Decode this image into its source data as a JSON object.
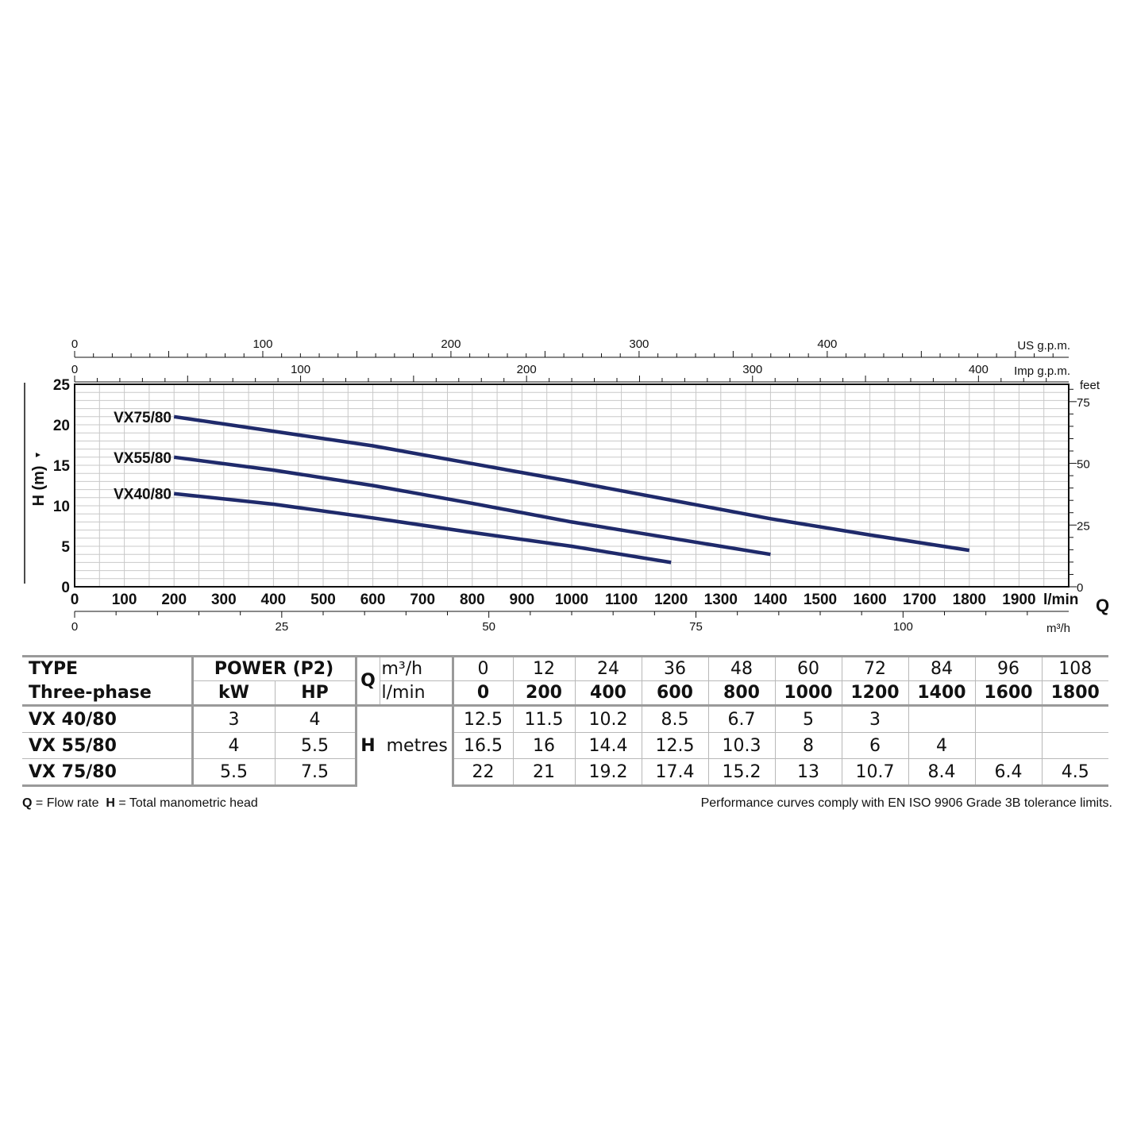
{
  "chart_data": {
    "type": "line",
    "x_unit_label": "l/min",
    "q_label": "Q",
    "y_label": "H (m)",
    "feet_label": "feet",
    "xlim": [
      0,
      2000
    ],
    "ylim": [
      0,
      25
    ],
    "x_ticks": [
      "0",
      "100",
      "200",
      "300",
      "400",
      "500",
      "600",
      "700",
      "800",
      "900",
      "1000",
      "1100",
      "1200",
      "1300",
      "1400",
      "1500",
      "1600",
      "1700",
      "1800",
      "1900"
    ],
    "y_ticks": [
      "0",
      "5",
      "10",
      "15",
      "20",
      "25"
    ],
    "feet_ticks": [
      "0",
      "25",
      "50",
      "75"
    ],
    "us_gpm": {
      "label": "US g.p.m.",
      "ticks": [
        "0",
        "100",
        "200",
        "300",
        "400"
      ]
    },
    "imp_gpm": {
      "label": "Imp g.p.m.",
      "ticks": [
        "0",
        "100",
        "200",
        "300",
        "400"
      ]
    },
    "m3h": {
      "label": "m³/h",
      "ticks": [
        "0",
        "25",
        "50",
        "75",
        "100"
      ]
    },
    "grid": true,
    "line_color": "#1f2a6b",
    "series": [
      {
        "name": "VX75/80",
        "x": [
          200,
          400,
          600,
          800,
          1000,
          1200,
          1400,
          1600,
          1800
        ],
        "y": [
          21,
          19.2,
          17.4,
          15.2,
          13,
          10.7,
          8.4,
          6.4,
          4.5
        ]
      },
      {
        "name": "VX55/80",
        "x": [
          200,
          400,
          600,
          800,
          1000,
          1200,
          1400
        ],
        "y": [
          16,
          14.4,
          12.5,
          10.3,
          8,
          6,
          4
        ]
      },
      {
        "name": "VX40/80",
        "x": [
          200,
          400,
          600,
          800,
          1000,
          1200
        ],
        "y": [
          11.5,
          10.2,
          8.5,
          6.7,
          5,
          3
        ]
      }
    ]
  },
  "table": {
    "type_header": "TYPE",
    "phase_header": "Three-phase",
    "power_header": "POWER (P2)",
    "kw_header": "kW",
    "hp_header": "HP",
    "q_symbol": "Q",
    "q_unit_m3h": "m³/h",
    "q_unit_lmin": "l/min",
    "q_m3h": [
      "0",
      "12",
      "24",
      "36",
      "48",
      "60",
      "72",
      "84",
      "96",
      "108"
    ],
    "q_lmin": [
      "0",
      "200",
      "400",
      "600",
      "800",
      "1000",
      "1200",
      "1400",
      "1600",
      "1800"
    ],
    "h_symbol": "H",
    "h_unit": "metres",
    "rows": [
      {
        "type": "VX 40/80",
        "kw": "3",
        "hp": "4",
        "h": [
          "12.5",
          "11.5",
          "10.2",
          "8.5",
          "6.7",
          "5",
          "3",
          "",
          "",
          ""
        ]
      },
      {
        "type": "VX 55/80",
        "kw": "4",
        "hp": "5.5",
        "h": [
          "16.5",
          "16",
          "14.4",
          "12.5",
          "10.3",
          "8",
          "6",
          "4",
          "",
          ""
        ]
      },
      {
        "type": "VX 75/80",
        "kw": "5.5",
        "hp": "7.5",
        "h": [
          "22",
          "21",
          "19.2",
          "17.4",
          "15.2",
          "13",
          "10.7",
          "8.4",
          "6.4",
          "4.5"
        ]
      }
    ]
  },
  "footer": {
    "q_symbol": "Q",
    "q_text": "= Flow rate",
    "h_symbol": "H",
    "h_text": "= Total manometric head",
    "right": "Performance curves comply with EN ISO 9906 Grade 3B tolerance limits."
  }
}
